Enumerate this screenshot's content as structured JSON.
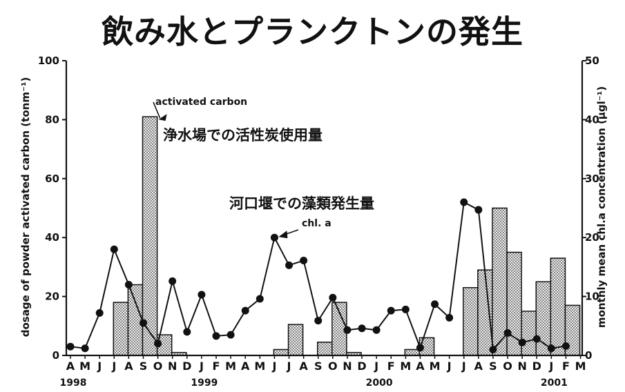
{
  "title": "飲み水とプランクトンの発生",
  "chart_data": {
    "type": "bar",
    "x": [
      "A",
      "M",
      "J",
      "J",
      "A",
      "S",
      "O",
      "N",
      "D",
      "J",
      "F",
      "M",
      "A",
      "M",
      "J",
      "J",
      "A",
      "S",
      "O",
      "N",
      "D",
      "J",
      "F",
      "M",
      "A",
      "M",
      "J",
      "J",
      "A",
      "S",
      "O",
      "N",
      "D",
      "J",
      "F",
      "M"
    ],
    "years": [
      {
        "label": "1998",
        "index": 0
      },
      {
        "label": "1999",
        "index": 9
      },
      {
        "label": "2000",
        "index": 21
      },
      {
        "label": "2001",
        "index": 33
      }
    ],
    "series": [
      {
        "name": "activated carbon",
        "type": "bar",
        "axis": "left",
        "values": [
          0,
          0,
          0,
          18,
          24,
          81,
          7,
          1,
          0,
          0,
          0,
          0,
          0,
          0,
          2,
          10.5,
          0,
          4.5,
          18,
          1,
          0,
          0,
          0,
          2,
          6,
          0,
          0,
          23,
          29,
          50,
          35,
          15,
          25,
          33,
          17,
          0
        ]
      },
      {
        "name": "chl. a",
        "type": "line",
        "axis": "right",
        "values": [
          1.5,
          1.2,
          7.2,
          18,
          12,
          5.5,
          2,
          12.6,
          4,
          10.3,
          3.3,
          3.5,
          7.6,
          9.6,
          20,
          15.3,
          16.1,
          5.9,
          9.8,
          4.3,
          4.6,
          4.3,
          7.6,
          7.8,
          1.3,
          8.7,
          6.4,
          26,
          24.7,
          1,
          3.8,
          2.2,
          2.8,
          1.2,
          1.6,
          null
        ]
      }
    ],
    "ylim_left": [
      0,
      100
    ],
    "yticks_left": [
      0,
      20,
      40,
      60,
      80,
      100
    ],
    "ylim_right": [
      0,
      50
    ],
    "yticks_right": [
      0,
      10,
      20,
      30,
      40,
      50
    ],
    "ylabel_left": "dosage of powder activated carbon (tonm⁻¹)",
    "ylabel_right": "monthly mean chl.a concentration (µgl⁻¹)",
    "annotations": {
      "carbon_label": "activated carbon",
      "chl_label": "chl. a",
      "carbon_jp": "浄水場での活性炭使用量",
      "chl_jp": "河口堰での藻類発生量"
    }
  }
}
